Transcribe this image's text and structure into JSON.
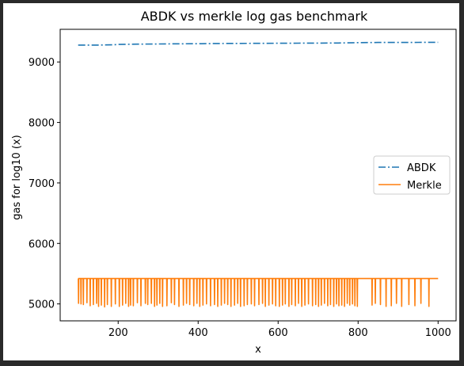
{
  "chart_data": {
    "type": "line",
    "title": "ABDK vs merkle log gas benchmark",
    "xlabel": "x",
    "ylabel": "gas for log10 (x)",
    "xlim": [
      55,
      1045
    ],
    "ylim": [
      4720,
      9540
    ],
    "xticks": [
      200,
      400,
      600,
      800,
      1000
    ],
    "yticks": [
      5000,
      6000,
      7000,
      8000,
      9000
    ],
    "xtick_labels": [
      "200",
      "400",
      "600",
      "800",
      "1000"
    ],
    "ytick_labels": [
      "5000",
      "6000",
      "7000",
      "8000",
      "9000"
    ],
    "legend_position": "center-right",
    "series": [
      {
        "name": "ABDK",
        "color": "#1f77b4",
        "style": "dashdot",
        "x": [
          100,
          150,
          190,
          200,
          250,
          300,
          350,
          400,
          450,
          500,
          550,
          600,
          650,
          700,
          750,
          800,
          850,
          900,
          950,
          1000
        ],
        "y": [
          9280,
          9280,
          9285,
          9290,
          9295,
          9298,
          9300,
          9302,
          9305,
          9307,
          9308,
          9310,
          9311,
          9312,
          9313,
          9320,
          9322,
          9323,
          9324,
          9325
        ]
      },
      {
        "name": "Merkle",
        "color": "#ff7f0e",
        "style": "solid",
        "baseline": 5420,
        "x_range": [
          100,
          1000
        ],
        "dips": [
          [
            101,
            5010
          ],
          [
            107,
            5000
          ],
          [
            113,
            4990
          ],
          [
            122,
            5020
          ],
          [
            130,
            4970
          ],
          [
            138,
            4990
          ],
          [
            146,
            5010
          ],
          [
            151,
            4960
          ],
          [
            158,
            4980
          ],
          [
            166,
            4950
          ],
          [
            173,
            4990
          ],
          [
            183,
            4960
          ],
          [
            193,
            5000
          ],
          [
            203,
            4960
          ],
          [
            211,
            4980
          ],
          [
            219,
            5010
          ],
          [
            226,
            4960
          ],
          [
            231,
            4980
          ],
          [
            238,
            4970
          ],
          [
            248,
            5020
          ],
          [
            257,
            4970
          ],
          [
            268,
            5010
          ],
          [
            274,
            4990
          ],
          [
            283,
            5010
          ],
          [
            291,
            4960
          ],
          [
            297,
            4980
          ],
          [
            304,
            5010
          ],
          [
            311,
            4960
          ],
          [
            322,
            4970
          ],
          [
            333,
            5020
          ],
          [
            341,
            4990
          ],
          [
            352,
            4960
          ],
          [
            363,
            4980
          ],
          [
            371,
            5010
          ],
          [
            379,
            4990
          ],
          [
            389,
            4970
          ],
          [
            397,
            5010
          ],
          [
            404,
            4960
          ],
          [
            412,
            4980
          ],
          [
            421,
            5000
          ],
          [
            431,
            4970
          ],
          [
            441,
            4990
          ],
          [
            449,
            4960
          ],
          [
            458,
            4980
          ],
          [
            466,
            5010
          ],
          [
            474,
            4990
          ],
          [
            482,
            4960
          ],
          [
            491,
            4980
          ],
          [
            499,
            5010
          ],
          [
            506,
            4960
          ],
          [
            515,
            4970
          ],
          [
            523,
            4990
          ],
          [
            533,
            5000
          ],
          [
            541,
            4970
          ],
          [
            552,
            4990
          ],
          [
            561,
            5010
          ],
          [
            568,
            4960
          ],
          [
            577,
            4980
          ],
          [
            586,
            5000
          ],
          [
            594,
            4970
          ],
          [
            603,
            4960
          ],
          [
            611,
            4980
          ],
          [
            618,
            5000
          ],
          [
            627,
            4960
          ],
          [
            634,
            4990
          ],
          [
            643,
            4970
          ],
          [
            651,
            5010
          ],
          [
            659,
            4960
          ],
          [
            667,
            4980
          ],
          [
            676,
            5000
          ],
          [
            686,
            4970
          ],
          [
            694,
            4990
          ],
          [
            701,
            4960
          ],
          [
            708,
            4980
          ],
          [
            716,
            5010
          ],
          [
            724,
            4970
          ],
          [
            731,
            4990
          ],
          [
            739,
            4960
          ],
          [
            746,
            5000
          ],
          [
            752,
            4970
          ],
          [
            759,
            4980
          ],
          [
            766,
            4960
          ],
          [
            773,
            5010
          ],
          [
            779,
            4980
          ],
          [
            786,
            5000
          ],
          [
            792,
            4970
          ],
          [
            798,
            4960
          ],
          [
            835,
            4980
          ],
          [
            843,
            5010
          ],
          [
            856,
            4990
          ],
          [
            870,
            4960
          ],
          [
            883,
            4970
          ],
          [
            896,
            5010
          ],
          [
            909,
            4960
          ],
          [
            927,
            4990
          ],
          [
            942,
            4970
          ],
          [
            957,
            5010
          ],
          [
            977,
            4960
          ]
        ]
      }
    ]
  }
}
